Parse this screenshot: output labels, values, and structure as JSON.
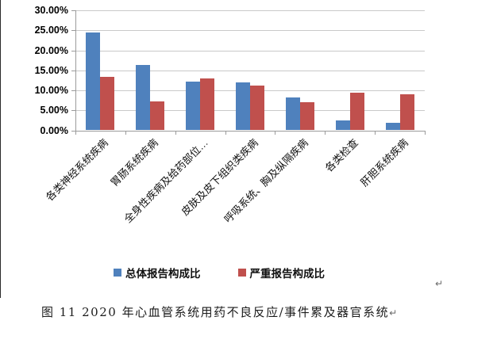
{
  "chart_data": {
    "type": "bar",
    "title": "",
    "categories": [
      "各类神经系统疾病",
      "胃肠系统疾病",
      "全身性疾病及给药部位…",
      "皮肤及皮下组织类疾病",
      "呼吸系统、胸及纵隔疾病",
      "各类检查",
      "肝胆系统疾病"
    ],
    "series": [
      {
        "name": "总体报告构成比",
        "color": "#4F81BD",
        "values": [
          24.4,
          16.3,
          12.2,
          12.0,
          8.3,
          2.4,
          1.8
        ]
      },
      {
        "name": "严重报告构成比",
        "color": "#C0504D",
        "values": [
          13.4,
          7.2,
          13.0,
          11.2,
          7.1,
          9.5,
          9.0
        ]
      }
    ],
    "xlabel": "",
    "ylabel": "",
    "ylim": [
      0,
      30
    ],
    "ytick_step": 5,
    "ytick_labels": [
      "0.00%",
      "5.00%",
      "10.00%",
      "15.00%",
      "20.00%",
      "25.00%",
      "30.00%"
    ],
    "grid": true,
    "legend_position": "bottom",
    "value_format": "percent"
  },
  "caption": {
    "text": "图 11  2020 年心血管系统用药不良反应/事件累及器官系统",
    "paragraph_mark": "↵"
  },
  "stray_paragraph_mark": "↵",
  "colors": {
    "series_total": "#4F81BD",
    "series_serious": "#C0504D",
    "gridline": "#c9c9c9",
    "axis": "#9b9b9b",
    "text": "#000000"
  }
}
